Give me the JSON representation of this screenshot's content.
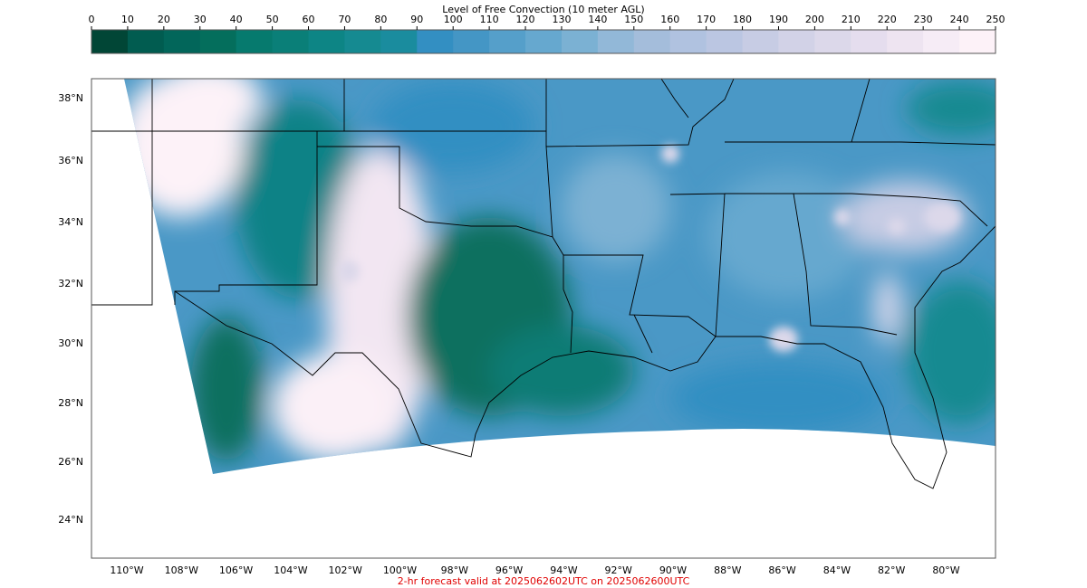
{
  "colorbar": {
    "title": "Level of Free Convection (10 meter AGL)",
    "ticks": [
      0,
      10,
      20,
      30,
      40,
      50,
      60,
      70,
      80,
      90,
      100,
      110,
      120,
      130,
      140,
      150,
      160,
      170,
      180,
      190,
      200,
      210,
      220,
      230,
      240,
      250
    ],
    "colors": [
      "#014636",
      "#015c50",
      "#02665a",
      "#046e5c",
      "#067a6e",
      "#0a7f78",
      "#0d8585",
      "#158a91",
      "#1a8c9e",
      "#338fc2",
      "#4496c5",
      "#559fca",
      "#66a8cf",
      "#7bb1d3",
      "#92b8d8",
      "#a4bddb",
      "#b0c2e0",
      "#bbc6e2",
      "#c7cce4",
      "#d2d2e7",
      "#dcd8ea",
      "#e5ddee",
      "#eee4f1",
      "#f6ecf6",
      "#fdf2f8"
    ]
  },
  "map": {
    "lat_labels": [
      "38°N",
      "36°N",
      "34°N",
      "32°N",
      "30°N",
      "28°N",
      "26°N",
      "24°N"
    ],
    "lon_labels": [
      "110°W",
      "108°W",
      "106°W",
      "104°W",
      "102°W",
      "100°W",
      "98°W",
      "96°W",
      "94°W",
      "92°W",
      "90°W",
      "88°W",
      "86°W",
      "84°W",
      "82°W",
      "80°W"
    ]
  },
  "footer": "2-hr forecast valid at 2025062602UTC on 2025062600UTC"
}
